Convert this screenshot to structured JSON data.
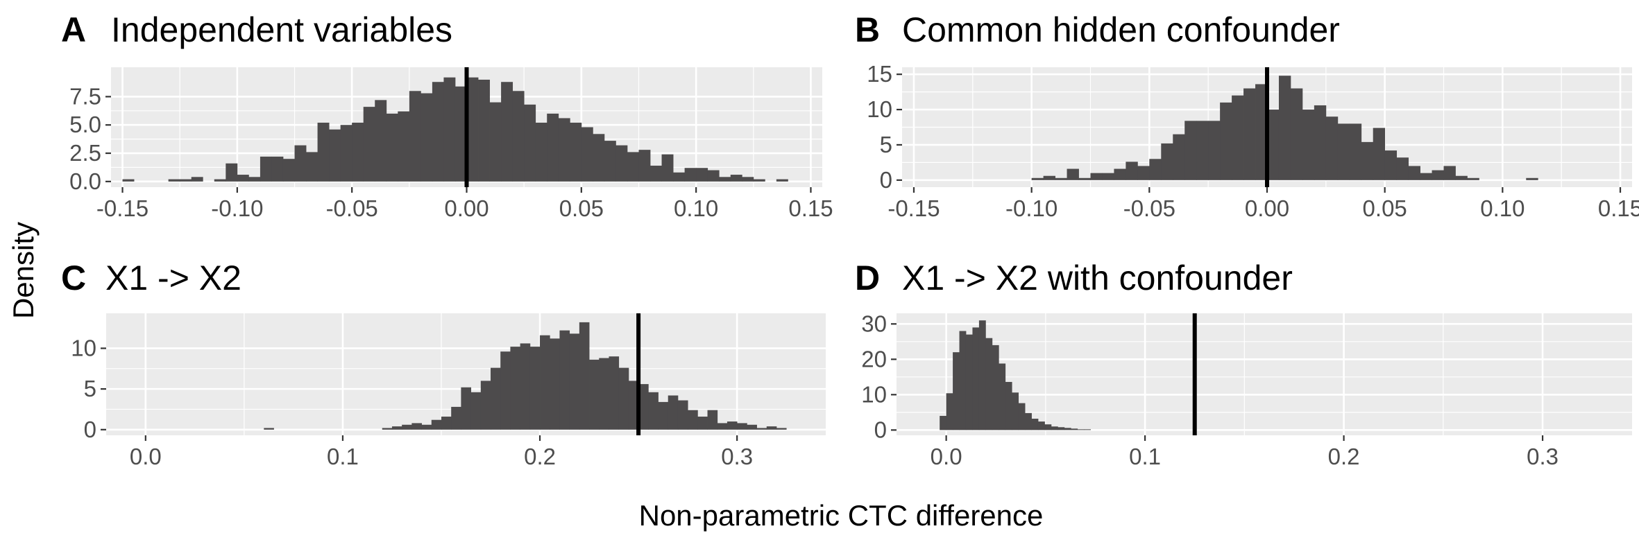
{
  "figure": {
    "y_axis_title": "Density",
    "x_axis_title": "Non-parametric CTC difference"
  },
  "colors": {
    "panel_background": "#ebebeb",
    "grid_major": "#ffffff",
    "bar_fill": "#4d4b4c",
    "reference_line": "#000000",
    "tick_text": "#4d4d4d"
  },
  "chart_data": [
    {
      "type": "bar",
      "panel_letter": "A",
      "title": "Independent variables",
      "xlim": [
        -0.155,
        0.155
      ],
      "ylim": [
        -0.5,
        10.1
      ],
      "x_ticks": [
        -0.15,
        -0.1,
        -0.05,
        0.0,
        0.05,
        0.1,
        0.15
      ],
      "x_tick_labels": [
        "-0.15",
        "-0.10",
        "-0.05",
        "0.00",
        "0.05",
        "0.10",
        "0.15"
      ],
      "y_ticks": [
        0,
        2.5,
        5,
        7.5
      ],
      "y_tick_labels": [
        "0.0",
        "2.5",
        "5.0",
        "7.5"
      ],
      "reference_line_x": 0.0,
      "bin_width": 0.005,
      "bins_x": [
        -0.1475,
        -0.1425,
        -0.1375,
        -0.1325,
        -0.1275,
        -0.1225,
        -0.1175,
        -0.1125,
        -0.1075,
        -0.1025,
        -0.0975,
        -0.0925,
        -0.0875,
        -0.0825,
        -0.0775,
        -0.0725,
        -0.0675,
        -0.0625,
        -0.0575,
        -0.0525,
        -0.0475,
        -0.0425,
        -0.0375,
        -0.0325,
        -0.0275,
        -0.0225,
        -0.0175,
        -0.0125,
        -0.0075,
        -0.0025,
        0.0025,
        0.0075,
        0.0125,
        0.0175,
        0.0225,
        0.0275,
        0.0325,
        0.0375,
        0.0425,
        0.0475,
        0.0525,
        0.0575,
        0.0625,
        0.0675,
        0.0725,
        0.0775,
        0.0825,
        0.0875,
        0.0925,
        0.0975,
        0.1025,
        0.1075,
        0.1125,
        0.1175,
        0.1225,
        0.1275,
        0.1325,
        0.1375
      ],
      "values": [
        0.2,
        0,
        0,
        0,
        0.2,
        0.2,
        0.4,
        0,
        0.2,
        1.6,
        0.6,
        0.4,
        2.2,
        2.2,
        2.0,
        3.2,
        2.6,
        5.2,
        4.6,
        5.0,
        5.2,
        6.6,
        7.2,
        6.0,
        6.2,
        8.0,
        7.8,
        8.8,
        9.2,
        8.4,
        9.2,
        9.0,
        7.0,
        8.8,
        8.0,
        6.8,
        5.2,
        6.0,
        5.6,
        5.2,
        4.8,
        4.2,
        3.6,
        3.2,
        2.6,
        2.8,
        1.4,
        2.4,
        0.8,
        1.2,
        1.2,
        1.0,
        0.4,
        0.6,
        0.4,
        0.2,
        0,
        0.2
      ]
    },
    {
      "type": "bar",
      "panel_letter": "B",
      "title": "Common hidden confounder",
      "xlim": [
        -0.155,
        0.155
      ],
      "ylim": [
        -1,
        16
      ],
      "x_ticks": [
        -0.15,
        -0.1,
        -0.05,
        0.0,
        0.05,
        0.1,
        0.15
      ],
      "x_tick_labels": [
        "-0.15",
        "-0.10",
        "-0.05",
        "0.00",
        "0.05",
        "0.10",
        "0.15"
      ],
      "y_ticks": [
        0,
        5,
        10,
        15
      ],
      "y_tick_labels": [
        "0",
        "5",
        "10",
        "15"
      ],
      "reference_line_x": 0.0,
      "bin_width": 0.005,
      "bins_x": [
        -0.0975,
        -0.0925,
        -0.0875,
        -0.0825,
        -0.0775,
        -0.0725,
        -0.0675,
        -0.0625,
        -0.0575,
        -0.0525,
        -0.0475,
        -0.0425,
        -0.0375,
        -0.0325,
        -0.0275,
        -0.0225,
        -0.0175,
        -0.0125,
        -0.0075,
        -0.0025,
        0.0025,
        0.0075,
        0.0125,
        0.0175,
        0.0225,
        0.0275,
        0.0325,
        0.0375,
        0.0425,
        0.0475,
        0.0525,
        0.0575,
        0.0625,
        0.0675,
        0.0725,
        0.0775,
        0.0825,
        0.0875,
        0.1125
      ],
      "values": [
        0.3,
        0.6,
        0.3,
        1.6,
        0.3,
        1.0,
        1.0,
        1.6,
        2.6,
        2.0,
        3.0,
        5.2,
        6.5,
        8.4,
        8.4,
        8.4,
        11.0,
        12.0,
        13.0,
        13.6,
        10.0,
        14.8,
        13.0,
        10.0,
        10.6,
        9.0,
        8.0,
        8.0,
        5.4,
        7.4,
        4.2,
        3.2,
        2.0,
        1.0,
        1.4,
        2.0,
        0.6,
        0.3,
        0.3
      ]
    },
    {
      "type": "bar",
      "panel_letter": "C",
      "title": "X1 -> X2",
      "xlim": [
        -0.02,
        0.345
      ],
      "ylim": [
        -0.7,
        14.3
      ],
      "x_ticks": [
        0.0,
        0.1,
        0.2,
        0.3
      ],
      "x_tick_labels": [
        "0.0",
        "0.1",
        "0.2",
        "0.3"
      ],
      "y_ticks": [
        0,
        5,
        10
      ],
      "y_tick_labels": [
        "0",
        "5",
        "10"
      ],
      "reference_line_x": 0.25,
      "bin_width": 0.005,
      "bins_x": [
        0.0625,
        0.1225,
        0.1275,
        0.1325,
        0.1375,
        0.1425,
        0.1475,
        0.1525,
        0.1575,
        0.1625,
        0.1675,
        0.1725,
        0.1775,
        0.1825,
        0.1875,
        0.1925,
        0.1975,
        0.2025,
        0.2075,
        0.2125,
        0.2175,
        0.2225,
        0.2275,
        0.2325,
        0.2375,
        0.2425,
        0.2475,
        0.2525,
        0.2575,
        0.2625,
        0.2675,
        0.2725,
        0.2775,
        0.2825,
        0.2875,
        0.2925,
        0.2975,
        0.3025,
        0.3075,
        0.3125,
        0.3175,
        0.3225
      ],
      "values": [
        0.2,
        0.2,
        0.4,
        0.6,
        0.8,
        0.6,
        1.2,
        1.6,
        2.8,
        5.2,
        4.6,
        6.0,
        7.6,
        9.6,
        10.2,
        10.6,
        10.2,
        11.6,
        11.2,
        12.2,
        11.8,
        13.2,
        8.6,
        8.8,
        9.0,
        7.6,
        6.0,
        5.6,
        4.6,
        3.4,
        4.2,
        3.6,
        2.4,
        1.6,
        2.4,
        0.8,
        1.0,
        0.8,
        0.6,
        0.2,
        0.4,
        0.2
      ]
    },
    {
      "type": "bar",
      "panel_letter": "D",
      "title": "X1 -> X2 with confounder",
      "xlim": [
        -0.025,
        0.345
      ],
      "ylim": [
        -1.5,
        33
      ],
      "x_ticks": [
        0.0,
        0.1,
        0.2,
        0.3
      ],
      "x_tick_labels": [
        "0.0",
        "0.1",
        "0.2",
        "0.3"
      ],
      "y_ticks": [
        0,
        10,
        20,
        30
      ],
      "y_tick_labels": [
        "0",
        "10",
        "20",
        "30"
      ],
      "reference_line_x": 0.125,
      "bin_width": 0.0033,
      "bins_x": [
        -0.00165,
        0.00165,
        0.00495,
        0.00825,
        0.01155,
        0.01485,
        0.01815,
        0.02145,
        0.02475,
        0.02805,
        0.03135,
        0.03465,
        0.03795,
        0.04125,
        0.04455,
        0.04785,
        0.05115,
        0.05445,
        0.05775,
        0.06105,
        0.06435,
        0.06765,
        0.07095
      ],
      "values": [
        4.0,
        10.4,
        22.0,
        28.0,
        27.0,
        29.0,
        31.0,
        26.0,
        24.0,
        18.8,
        13.6,
        10.6,
        7.6,
        4.8,
        3.2,
        2.4,
        1.6,
        1.0,
        0.8,
        0.6,
        0.4,
        0.2,
        0.2
      ]
    }
  ]
}
